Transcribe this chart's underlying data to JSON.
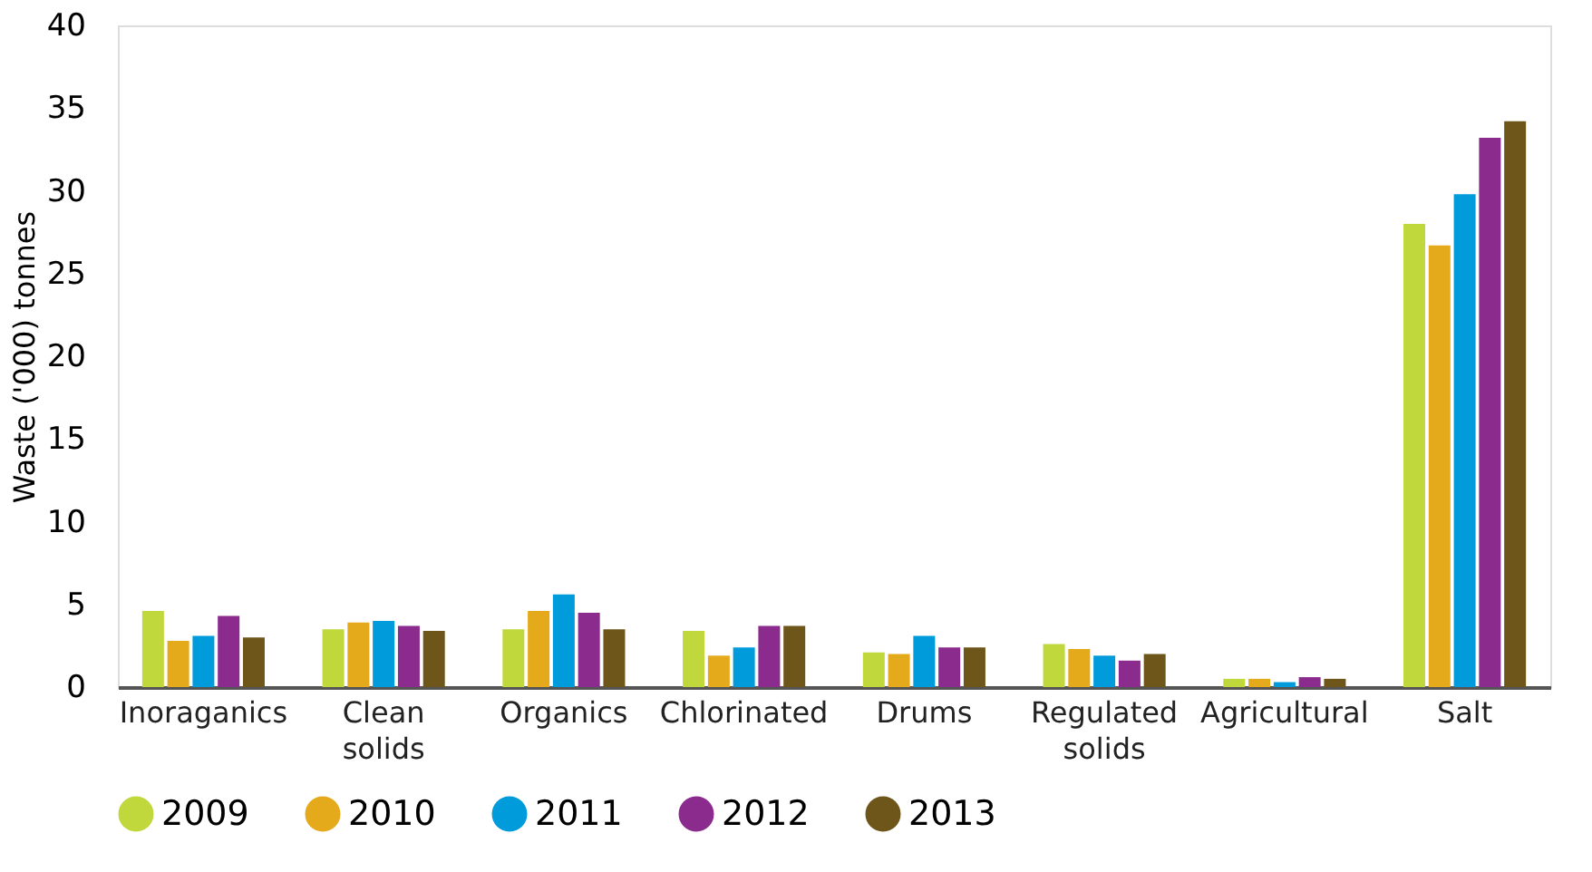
{
  "chart_data": {
    "type": "bar",
    "ylabel": "Waste ('000) tonnes",
    "categories": [
      "Inoraganics",
      "Clean solids",
      "Organics",
      "Chlorinated",
      "Drums",
      "Regulated solids",
      "Agricultural",
      "Salt"
    ],
    "series": [
      {
        "name": "2009",
        "color": "#c0d83c",
        "values": [
          4.6,
          3.5,
          3.5,
          3.4,
          2.1,
          2.6,
          0.5,
          28.0
        ]
      },
      {
        "name": "2010",
        "color": "#e5aa1b",
        "values": [
          2.8,
          3.9,
          4.6,
          1.9,
          2.0,
          2.3,
          0.5,
          26.7
        ]
      },
      {
        "name": "2011",
        "color": "#009bdb",
        "values": [
          3.1,
          4.0,
          5.6,
          2.4,
          3.1,
          1.9,
          0.3,
          29.8
        ]
      },
      {
        "name": "2012",
        "color": "#8b2b8d",
        "values": [
          4.3,
          3.7,
          4.5,
          3.7,
          2.4,
          1.6,
          0.6,
          33.2
        ]
      },
      {
        "name": "2013",
        "color": "#6e561b",
        "values": [
          3.0,
          3.4,
          3.5,
          3.7,
          2.4,
          2.0,
          0.5,
          34.2
        ]
      }
    ],
    "ylim": [
      0,
      40
    ],
    "yticks": [
      0,
      5,
      10,
      15,
      20,
      25,
      30,
      35,
      40
    ],
    "grid": false,
    "legend": "bottom"
  }
}
